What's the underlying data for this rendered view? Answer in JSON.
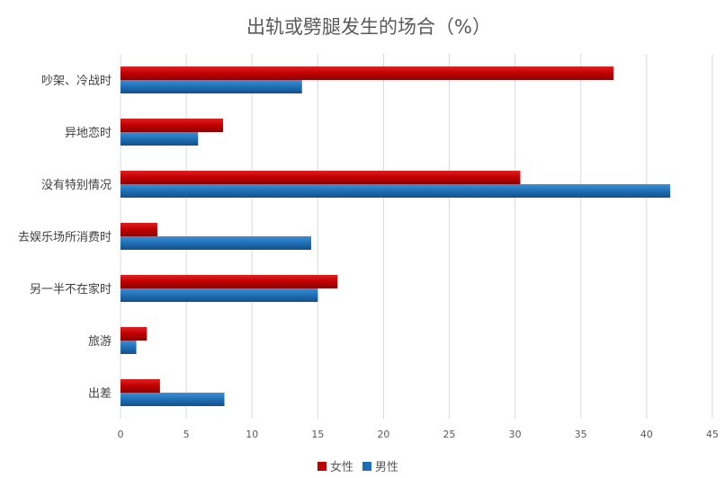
{
  "chart_data": {
    "type": "bar",
    "orientation": "horizontal",
    "title": "出轨或劈腿发生的场合（%）",
    "xlabel": "",
    "ylabel": "",
    "xlim": [
      0,
      45
    ],
    "ticks": [
      0,
      5,
      10,
      15,
      20,
      25,
      30,
      35,
      40,
      45
    ],
    "categories": [
      "吵架、冷战时",
      "异地恋时",
      "没有特别情况",
      "去娱乐场所消费时",
      "另一半不在家时",
      "旅游",
      "出差"
    ],
    "series": [
      {
        "name": "女性",
        "color": "#c00000",
        "values": [
          37.5,
          7.8,
          30.4,
          2.8,
          16.5,
          2.0,
          3.0
        ]
      },
      {
        "name": "男性",
        "color": "#1f6fb5",
        "values": [
          13.8,
          5.9,
          41.8,
          14.5,
          15.0,
          1.2,
          7.9
        ]
      }
    ],
    "grid": true,
    "legend": "bottom"
  }
}
